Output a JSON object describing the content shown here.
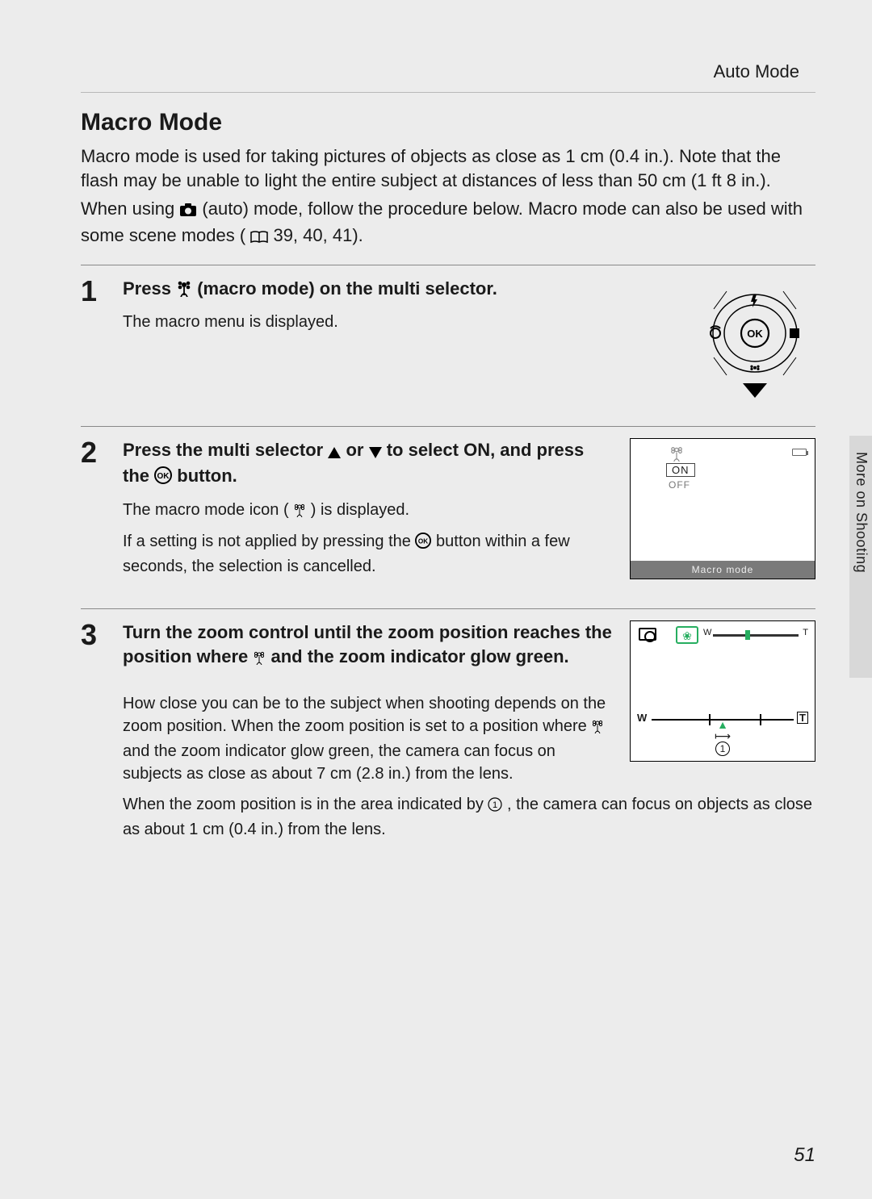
{
  "header": {
    "breadcrumb": "Auto Mode"
  },
  "title": "Macro Mode",
  "intro1": "Macro mode is used for taking pictures of objects as close as 1 cm (0.4 in.). Note that the flash may be unable to light the entire subject at distances of less than 50 cm (1 ft 8 in.).",
  "intro2_pre": "When using ",
  "intro2_post": " (auto) mode, follow the procedure below. Macro mode can also be used with some scene modes (",
  "intro2_refs": " 39, 40, 41).",
  "steps": {
    "s1": {
      "num": "1",
      "head_pre": "Press ",
      "head_post": " (macro mode) on the multi selector.",
      "sub": "The macro menu is displayed."
    },
    "s2": {
      "num": "2",
      "head_pre": "Press the multi selector ",
      "head_mid": " or ",
      "head_select": " to select ",
      "head_on": "ON",
      "head_post2": ", and press the ",
      "head_end": " button.",
      "sub1_pre": "The macro mode icon (",
      "sub1_post": ") is displayed.",
      "sub2_pre": "If a setting is not applied by pressing the ",
      "sub2_post": " button within a few seconds, the selection is cancelled.",
      "lcd": {
        "on": "ON",
        "off": "OFF",
        "footer": "Macro mode"
      }
    },
    "s3": {
      "num": "3",
      "head_pre": "Turn the zoom control until the zoom position reaches the position where ",
      "head_post": " and the zoom indicator glow green.",
      "note1_pre": "How close you can be to the subject when shooting depends on the zoom position. When the zoom position is set to a position where ",
      "note1_post": " and the zoom indicator glow green, the camera can focus on subjects as close as about 7 cm (2.8 in.) from the lens.",
      "note2_pre": "When the zoom position is in the area indicated by ",
      "note2_circ": "1",
      "note2_post": ", the camera can focus on objects as close as about 1 cm (0.4 in.) from the lens.",
      "lcd": {
        "w": "W",
        "t": "T",
        "circ": "1",
        "zoom_mark_left_pct": 40,
        "cursor1_left_pct": 42,
        "cursor2_left_pct": 72,
        "green": "#27ae60"
      }
    }
  },
  "sideTab": "More on Shooting",
  "pageNumber": "51",
  "colors": {
    "page_bg": "#ececec",
    "rule": "#888888",
    "lcd_footer_bg": "#7a7a7a",
    "green": "#27ae60"
  }
}
